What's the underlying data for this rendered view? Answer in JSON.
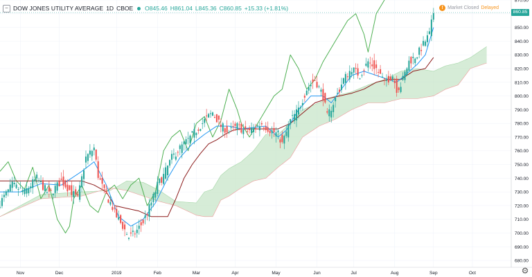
{
  "header": {
    "collapse_glyph": "−",
    "title": "DOW JONES UTILITY AVERAGE",
    "interval": "1D",
    "exchange": "CBOE",
    "open": "O845.46",
    "high": "H861.04",
    "low": "L845.36",
    "close": "C860.85",
    "change": "+15.33 (+1.81%)"
  },
  "status": {
    "market": "Market Closed",
    "delay": "Delayed",
    "warn_glyph": "!"
  },
  "last_price_tag": "860.85",
  "colors": {
    "up": "#26a69a",
    "down": "#ef5350",
    "conversion_line": "#2196f3",
    "base_line": "#8b1a1a",
    "lagging_span": "#4caf50",
    "cloud_bull": "#c8e6c9",
    "cloud_bear": "#ffcdd2"
  },
  "chart_data": {
    "type": "candlestick",
    "indicator": "ichimoku",
    "y_axis": {
      "min": 675,
      "max": 870,
      "position": "right",
      "ticks": [
        "870.00",
        "860.00",
        "850.00",
        "840.00",
        "830.00",
        "820.00",
        "810.00",
        "800.00",
        "790.00",
        "780.00",
        "770.00",
        "760.00",
        "750.00",
        "740.00",
        "730.00",
        "720.00",
        "710.00",
        "700.00",
        "690.00",
        "680.00"
      ]
    },
    "x_axis": {
      "labels": [
        "Nov",
        "Dec",
        "2019",
        "Feb",
        "Mar",
        "Apr",
        "May",
        "Jun",
        "Jul",
        "Aug",
        "Sep",
        "Oct"
      ],
      "label_positions": [
        10,
        29,
        57,
        77,
        96,
        115,
        135,
        155,
        173,
        193,
        212,
        231
      ],
      "total_bars": 250
    },
    "price_anchors": [
      [
        0,
        722
      ],
      [
        6,
        735
      ],
      [
        12,
        730
      ],
      [
        18,
        740
      ],
      [
        24,
        728
      ],
      [
        30,
        738
      ],
      [
        38,
        725
      ],
      [
        42,
        755
      ],
      [
        46,
        762
      ],
      [
        48,
        742
      ],
      [
        51,
        730
      ],
      [
        54,
        722
      ],
      [
        57,
        712
      ],
      [
        60,
        705
      ],
      [
        63,
        697
      ],
      [
        66,
        700
      ],
      [
        70,
        708
      ],
      [
        74,
        722
      ],
      [
        77,
        735
      ],
      [
        80,
        742
      ],
      [
        84,
        755
      ],
      [
        88,
        762
      ],
      [
        92,
        768
      ],
      [
        96,
        775
      ],
      [
        100,
        782
      ],
      [
        104,
        788
      ],
      [
        108,
        778
      ],
      [
        112,
        774
      ],
      [
        116,
        778
      ],
      [
        120,
        774
      ],
      [
        124,
        776
      ],
      [
        128,
        780
      ],
      [
        132,
        775
      ],
      [
        136,
        772
      ],
      [
        138,
        765
      ],
      [
        142,
        782
      ],
      [
        146,
        790
      ],
      [
        150,
        805
      ],
      [
        154,
        812
      ],
      [
        158,
        800
      ],
      [
        160,
        785
      ],
      [
        164,
        798
      ],
      [
        168,
        812
      ],
      [
        172,
        820
      ],
      [
        176,
        815
      ],
      [
        180,
        825
      ],
      [
        184,
        820
      ],
      [
        188,
        810
      ],
      [
        192,
        815
      ],
      [
        194,
        805
      ],
      [
        196,
        808
      ],
      [
        200,
        825
      ],
      [
        204,
        830
      ],
      [
        208,
        840
      ],
      [
        210,
        845
      ],
      [
        212,
        861
      ]
    ],
    "cloud_span_a": [
      [
        0,
        712
      ],
      [
        20,
        728
      ],
      [
        40,
        730
      ],
      [
        54,
        731
      ],
      [
        62,
        738
      ],
      [
        70,
        737
      ],
      [
        78,
        731
      ],
      [
        86,
        723
      ],
      [
        96,
        722
      ],
      [
        100,
        730
      ],
      [
        104,
        732
      ],
      [
        108,
        742
      ],
      [
        112,
        747
      ],
      [
        118,
        752
      ],
      [
        124,
        760
      ],
      [
        130,
        772
      ],
      [
        136,
        772
      ],
      [
        142,
        780
      ],
      [
        148,
        790
      ],
      [
        156,
        795
      ],
      [
        164,
        800
      ],
      [
        172,
        803
      ],
      [
        180,
        808
      ],
      [
        188,
        812
      ],
      [
        196,
        818
      ],
      [
        204,
        820
      ],
      [
        212,
        818
      ],
      [
        218,
        822
      ],
      [
        224,
        824
      ],
      [
        230,
        828
      ],
      [
        238,
        836
      ]
    ],
    "cloud_span_b": [
      [
        0,
        712
      ],
      [
        20,
        725
      ],
      [
        40,
        727
      ],
      [
        54,
        733
      ],
      [
        62,
        731
      ],
      [
        70,
        727
      ],
      [
        78,
        723
      ],
      [
        86,
        720
      ],
      [
        96,
        713
      ],
      [
        100,
        712
      ],
      [
        104,
        712
      ],
      [
        108,
        724
      ],
      [
        112,
        727
      ],
      [
        118,
        733
      ],
      [
        124,
        738
      ],
      [
        130,
        740
      ],
      [
        136,
        748
      ],
      [
        142,
        755
      ],
      [
        148,
        770
      ],
      [
        156,
        778
      ],
      [
        164,
        783
      ],
      [
        172,
        790
      ],
      [
        180,
        795
      ],
      [
        188,
        795
      ],
      [
        196,
        798
      ],
      [
        204,
        798
      ],
      [
        212,
        800
      ],
      [
        218,
        805
      ],
      [
        224,
        808
      ],
      [
        230,
        820
      ],
      [
        238,
        824
      ]
    ],
    "conversion_line": [
      [
        0,
        730
      ],
      [
        10,
        730
      ],
      [
        20,
        736
      ],
      [
        30,
        735
      ],
      [
        40,
        745
      ],
      [
        46,
        752
      ],
      [
        52,
        735
      ],
      [
        58,
        712
      ],
      [
        64,
        705
      ],
      [
        70,
        710
      ],
      [
        76,
        722
      ],
      [
        82,
        740
      ],
      [
        88,
        755
      ],
      [
        94,
        765
      ],
      [
        100,
        772
      ],
      [
        106,
        778
      ],
      [
        112,
        778
      ],
      [
        118,
        776
      ],
      [
        124,
        777
      ],
      [
        130,
        778
      ],
      [
        136,
        770
      ],
      [
        140,
        775
      ],
      [
        146,
        790
      ],
      [
        152,
        800
      ],
      [
        158,
        800
      ],
      [
        162,
        795
      ],
      [
        166,
        803
      ],
      [
        172,
        815
      ],
      [
        178,
        818
      ],
      [
        184,
        815
      ],
      [
        190,
        812
      ],
      [
        194,
        810
      ],
      [
        198,
        815
      ],
      [
        204,
        823
      ],
      [
        208,
        830
      ],
      [
        212,
        850
      ]
    ],
    "base_line": [
      [
        0,
        738
      ],
      [
        10,
        738
      ],
      [
        20,
        738
      ],
      [
        30,
        738
      ],
      [
        40,
        738
      ],
      [
        46,
        735
      ],
      [
        52,
        730
      ],
      [
        56,
        720
      ],
      [
        62,
        718
      ],
      [
        68,
        716
      ],
      [
        74,
        712
      ],
      [
        78,
        712
      ],
      [
        82,
        712
      ],
      [
        86,
        725
      ],
      [
        90,
        740
      ],
      [
        94,
        750
      ],
      [
        98,
        758
      ],
      [
        102,
        765
      ],
      [
        106,
        768
      ],
      [
        110,
        772
      ],
      [
        114,
        775
      ],
      [
        118,
        776
      ],
      [
        124,
        776
      ],
      [
        130,
        776
      ],
      [
        136,
        776
      ],
      [
        142,
        780
      ],
      [
        146,
        785
      ],
      [
        150,
        790
      ],
      [
        154,
        795
      ],
      [
        160,
        798
      ],
      [
        166,
        800
      ],
      [
        172,
        802
      ],
      [
        178,
        805
      ],
      [
        184,
        810
      ],
      [
        190,
        812
      ],
      [
        196,
        812
      ],
      [
        202,
        818
      ],
      [
        208,
        820
      ],
      [
        212,
        828
      ]
    ],
    "lagging_span": [
      [
        0,
        745
      ],
      [
        4,
        752
      ],
      [
        8,
        738
      ],
      [
        12,
        732
      ],
      [
        16,
        748
      ],
      [
        20,
        725
      ],
      [
        24,
        735
      ],
      [
        28,
        710
      ],
      [
        32,
        700
      ],
      [
        34,
        705
      ],
      [
        36,
        725
      ],
      [
        40,
        735
      ],
      [
        44,
        720
      ],
      [
        48,
        715
      ],
      [
        52,
        730
      ],
      [
        56,
        735
      ],
      [
        60,
        725
      ],
      [
        64,
        735
      ],
      [
        68,
        740
      ],
      [
        72,
        720
      ],
      [
        76,
        730
      ],
      [
        80,
        760
      ],
      [
        84,
        770
      ],
      [
        88,
        775
      ],
      [
        92,
        760
      ],
      [
        96,
        780
      ],
      [
        100,
        785
      ],
      [
        104,
        770
      ],
      [
        108,
        782
      ],
      [
        112,
        805
      ],
      [
        116,
        790
      ],
      [
        118,
        780
      ],
      [
        122,
        770
      ],
      [
        126,
        780
      ],
      [
        130,
        790
      ],
      [
        134,
        800
      ],
      [
        138,
        805
      ],
      [
        142,
        830
      ],
      [
        146,
        820
      ],
      [
        150,
        805
      ],
      [
        154,
        812
      ],
      [
        158,
        825
      ],
      [
        162,
        835
      ],
      [
        166,
        845
      ],
      [
        170,
        855
      ],
      [
        174,
        860
      ],
      [
        178,
        845
      ],
      [
        180,
        832
      ],
      [
        184,
        860
      ],
      [
        188,
        870
      ]
    ]
  }
}
